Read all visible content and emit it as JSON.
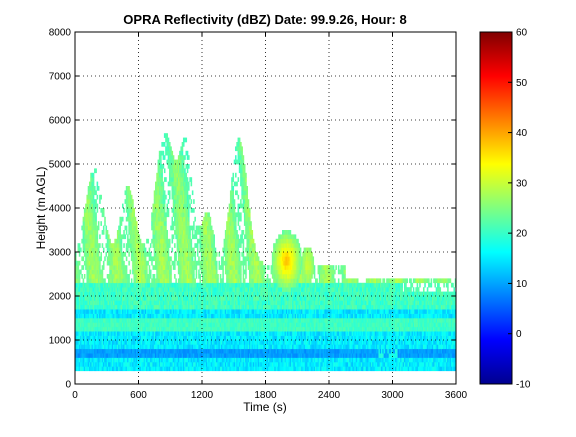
{
  "chart_data": {
    "type": "heatmap",
    "title": "OPRA Reflectivity (dBZ)  Date: 99.9.26, Hour: 8",
    "xlabel": "Time (s)",
    "ylabel": "Height (m AGL)",
    "xlim": [
      0,
      3600
    ],
    "ylim": [
      0,
      8000
    ],
    "x_ticks": [
      0,
      600,
      1200,
      1800,
      2400,
      3000,
      3600
    ],
    "y_ticks": [
      0,
      1000,
      2000,
      3000,
      4000,
      5000,
      6000,
      7000,
      8000
    ],
    "grid": true,
    "colormap": "jet",
    "colorbar": {
      "range": [
        -10,
        60
      ],
      "ticks": [
        -10,
        0,
        10,
        20,
        30,
        40,
        50,
        60
      ]
    },
    "colors": [
      "#00008f",
      "#0000ff",
      "#00ffff",
      "#ffff00",
      "#ff0000",
      "#800000"
    ],
    "features": [
      {
        "name": "near-surface band",
        "time_range": [
          0,
          3600
        ],
        "height_range": [
          300,
          1700
        ],
        "dbz": 14
      },
      {
        "name": "low-level stripe",
        "time_range": [
          0,
          3600
        ],
        "height_range": [
          600,
          800
        ],
        "dbz": 9
      },
      {
        "name": "layer band",
        "time_range": [
          0,
          3600
        ],
        "height_range": [
          1700,
          2700
        ],
        "dbz": 20
      },
      {
        "name": "convective cell",
        "time": 2000,
        "height_center": 2800,
        "dbz_max": 38
      },
      {
        "name": "echo top",
        "time": 850,
        "height": 6200,
        "dbz": 25
      },
      {
        "name": "echo top",
        "time": 1550,
        "height": 6100,
        "dbz": 24
      }
    ]
  }
}
